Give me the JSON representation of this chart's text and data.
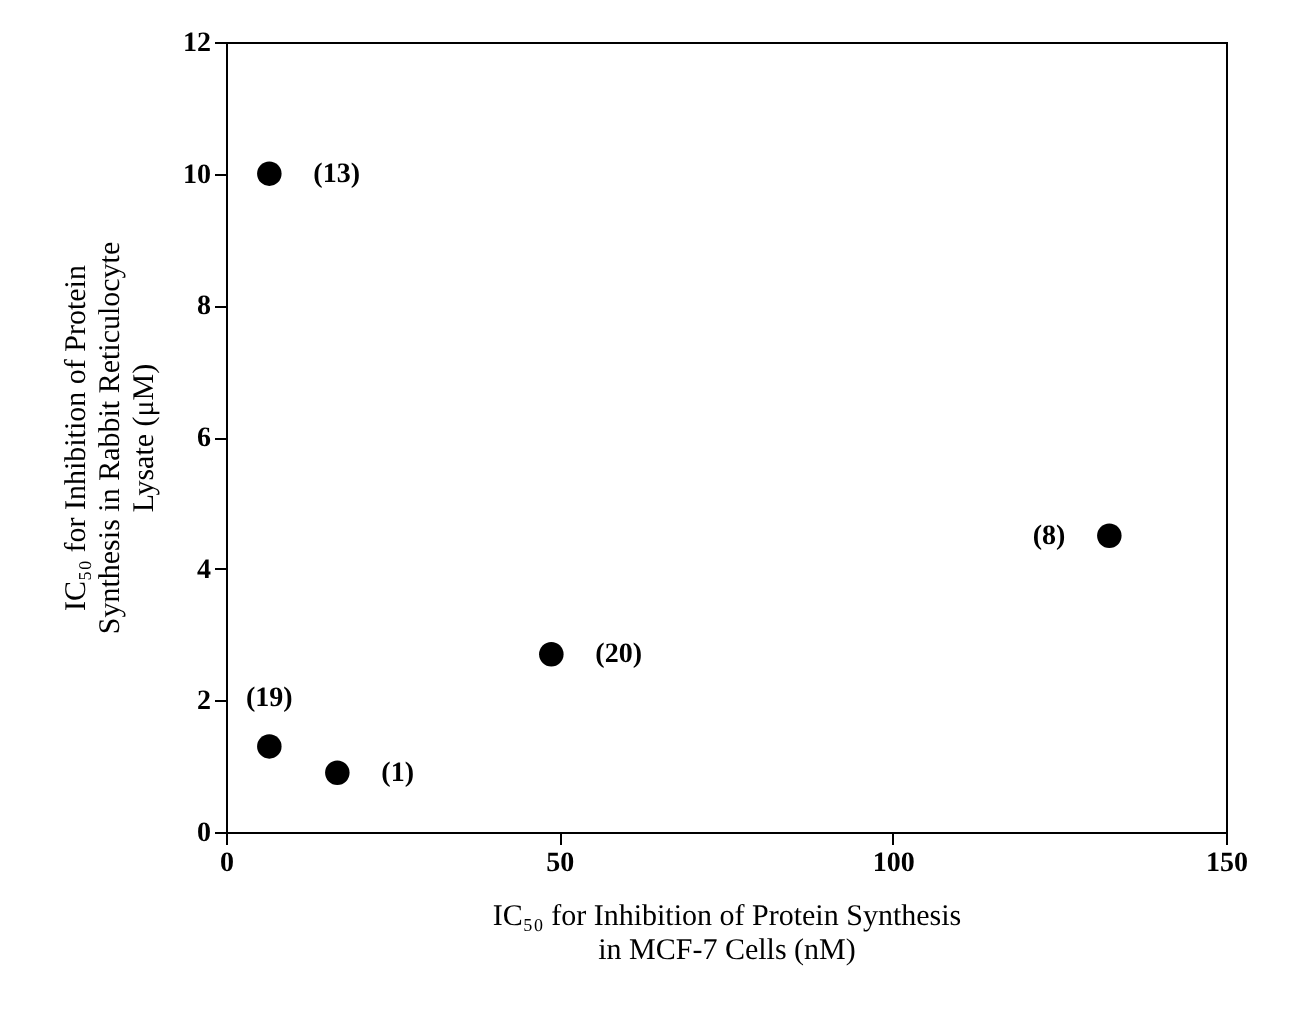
{
  "chart_data": {
    "type": "scatter",
    "xlabel": "IC₅₀ for Inhibition of Protein Synthesis in MCF-7 Cells (nM)",
    "ylabel": "IC₅₀ for Inhibition of Protein Synthesis in Rabbit Reticulocyte Lysate (μM)",
    "x": [
      6.5,
      6.5,
      16.7,
      48.8,
      132.5
    ],
    "series": [
      {
        "color": "#000000",
        "values": [
          10,
          1.3,
          0.9,
          2.7,
          4.5
        ]
      }
    ],
    "annotations": [
      {
        "text": "(13)",
        "x": 6.5,
        "y": 10
      },
      {
        "text": "(19)",
        "x": 6.5,
        "y": 1.3
      },
      {
        "text": "(1)",
        "x": 16.7,
        "y": 0.9
      },
      {
        "text": "(20)",
        "x": 48.8,
        "y": 2.7
      },
      {
        "text": "(8)",
        "x": 132.5,
        "y": 4.5
      }
    ],
    "xlim": [
      0,
      150
    ],
    "xticks": [
      0,
      50,
      100,
      150
    ],
    "ylim": [
      0,
      12
    ],
    "yticks": [
      0,
      2,
      4,
      6,
      8,
      10,
      12
    ],
    "grid": false,
    "legend": false,
    "marker": "circle"
  }
}
